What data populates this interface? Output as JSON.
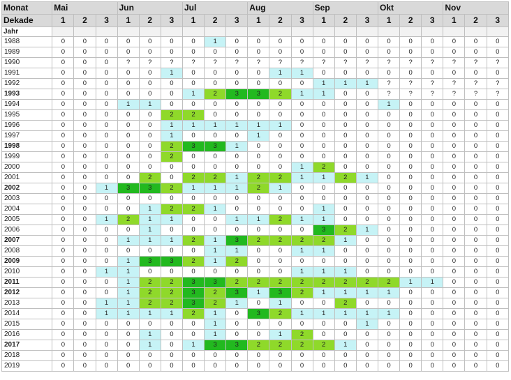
{
  "header": {
    "monat_label": "Monat",
    "dekade_label": "Dekade",
    "jahr_label": "Jahr",
    "months": [
      "Mai",
      "Jun",
      "Jul",
      "Aug",
      "Sep",
      "Okt",
      "Nov"
    ],
    "dekaden": [
      "1",
      "2",
      "3"
    ]
  },
  "colors": {
    "value_1": "#c6f3f6",
    "value_2": "#8fd92a",
    "value_3": "#22b91f",
    "header_bg": "#d9d9d9"
  },
  "rows": [
    {
      "year": "1988",
      "bold": false,
      "cells": [
        "0",
        "0",
        "0",
        "0",
        "0",
        "0",
        "0",
        "1",
        "0",
        "0",
        "0",
        "0",
        "0",
        "0",
        "0",
        "0",
        "0",
        "0",
        "0",
        "0",
        "0"
      ]
    },
    {
      "year": "1989",
      "bold": false,
      "cells": [
        "0",
        "0",
        "0",
        "0",
        "0",
        "0",
        "0",
        "0",
        "0",
        "0",
        "0",
        "0",
        "0",
        "0",
        "0",
        "0",
        "0",
        "0",
        "0",
        "0",
        "0"
      ]
    },
    {
      "year": "1990",
      "bold": false,
      "cells": [
        "0",
        "0",
        "0",
        "?",
        "?",
        "?",
        "?",
        "?",
        "?",
        "?",
        "?",
        "?",
        "?",
        "?",
        "?",
        "?",
        "?",
        "?",
        "?",
        "?",
        "?"
      ]
    },
    {
      "year": "1991",
      "bold": false,
      "cells": [
        "0",
        "0",
        "0",
        "0",
        "0",
        "1",
        "0",
        "0",
        "0",
        "0",
        "1",
        "1",
        "0",
        "0",
        "0",
        "0",
        "0",
        "0",
        "0",
        "0",
        "0"
      ]
    },
    {
      "year": "1992",
      "bold": false,
      "cells": [
        "0",
        "0",
        "0",
        "0",
        "0",
        "0",
        "0",
        "0",
        "0",
        "0",
        "0",
        "0",
        "1",
        "1",
        "1",
        "?",
        "?",
        "?",
        "?",
        "?",
        "?"
      ]
    },
    {
      "year": "1993",
      "bold": true,
      "cells": [
        "0",
        "0",
        "0",
        "0",
        "0",
        "0",
        "1",
        "2",
        "3",
        "3",
        "2",
        "1",
        "1",
        "0",
        "0",
        "?",
        "?",
        "?",
        "?",
        "?",
        "?"
      ]
    },
    {
      "year": "1994",
      "bold": false,
      "cells": [
        "0",
        "0",
        "0",
        "1",
        "1",
        "0",
        "0",
        "0",
        "0",
        "0",
        "0",
        "0",
        "0",
        "0",
        "0",
        "1",
        "0",
        "0",
        "0",
        "0",
        "0"
      ]
    },
    {
      "year": "1995",
      "bold": false,
      "cells": [
        "0",
        "0",
        "0",
        "0",
        "0",
        "2",
        "2",
        "0",
        "0",
        "0",
        "0",
        "0",
        "0",
        "0",
        "0",
        "0",
        "0",
        "0",
        "0",
        "0",
        "0"
      ]
    },
    {
      "year": "1996",
      "bold": false,
      "cells": [
        "0",
        "0",
        "0",
        "0",
        "0",
        "1",
        "1",
        "1",
        "1",
        "1",
        "1",
        "0",
        "0",
        "0",
        "0",
        "0",
        "0",
        "0",
        "0",
        "0",
        "0"
      ]
    },
    {
      "year": "1997",
      "bold": false,
      "cells": [
        "0",
        "0",
        "0",
        "0",
        "0",
        "1",
        "0",
        "0",
        "0",
        "1",
        "0",
        "0",
        "0",
        "0",
        "0",
        "0",
        "0",
        "0",
        "0",
        "0",
        "0"
      ]
    },
    {
      "year": "1998",
      "bold": true,
      "cells": [
        "0",
        "0",
        "0",
        "0",
        "0",
        "2",
        "3",
        "3",
        "1",
        "0",
        "0",
        "0",
        "0",
        "0",
        "0",
        "0",
        "0",
        "0",
        "0",
        "0",
        "0"
      ]
    },
    {
      "year": "1999",
      "bold": false,
      "cells": [
        "0",
        "0",
        "0",
        "0",
        "0",
        "2",
        "0",
        "0",
        "0",
        "0",
        "0",
        "0",
        "0",
        "0",
        "0",
        "0",
        "0",
        "0",
        "0",
        "0",
        "0"
      ]
    },
    {
      "year": "2000",
      "bold": false,
      "cells": [
        "0",
        "0",
        "0",
        "0",
        "0",
        "0",
        "0",
        "0",
        "0",
        "0",
        "0",
        "1",
        "2",
        "0",
        "0",
        "0",
        "0",
        "0",
        "0",
        "0",
        "0"
      ]
    },
    {
      "year": "2001",
      "bold": false,
      "cells": [
        "0",
        "0",
        "0",
        "0",
        "2",
        "0",
        "2",
        "2",
        "1",
        "2",
        "2",
        "1",
        "1",
        "2",
        "1",
        "0",
        "0",
        "0",
        "0",
        "0",
        "0"
      ]
    },
    {
      "year": "2002",
      "bold": true,
      "cells": [
        "0",
        "0",
        "1",
        "3",
        "3",
        "2",
        "1",
        "1",
        "1",
        "2",
        "1",
        "0",
        "0",
        "0",
        "0",
        "0",
        "0",
        "0",
        "0",
        "0",
        "0"
      ]
    },
    {
      "year": "2003",
      "bold": false,
      "cells": [
        "0",
        "0",
        "0",
        "0",
        "0",
        "0",
        "0",
        "0",
        "0",
        "0",
        "0",
        "0",
        "0",
        "0",
        "0",
        "0",
        "0",
        "0",
        "0",
        "0",
        "0"
      ]
    },
    {
      "year": "2004",
      "bold": false,
      "cells": [
        "0",
        "0",
        "0",
        "0",
        "1",
        "2",
        "2",
        "1",
        "0",
        "0",
        "0",
        "0",
        "1",
        "0",
        "0",
        "0",
        "0",
        "0",
        "0",
        "0",
        "0"
      ]
    },
    {
      "year": "2005",
      "bold": false,
      "cells": [
        "0",
        "0",
        "1",
        "2",
        "1",
        "1",
        "0",
        "0",
        "1",
        "1",
        "2",
        "1",
        "1",
        "0",
        "0",
        "0",
        "0",
        "0",
        "0",
        "0",
        "0"
      ]
    },
    {
      "year": "2006",
      "bold": false,
      "cells": [
        "0",
        "0",
        "0",
        "0",
        "1",
        "0",
        "0",
        "0",
        "0",
        "0",
        "0",
        "0",
        "3",
        "2",
        "1",
        "0",
        "0",
        "0",
        "0",
        "0",
        "0"
      ]
    },
    {
      "year": "2007",
      "bold": true,
      "cells": [
        "0",
        "0",
        "0",
        "1",
        "1",
        "1",
        "2",
        "1",
        "3",
        "2",
        "2",
        "2",
        "2",
        "1",
        "0",
        "0",
        "0",
        "0",
        "0",
        "0",
        "0"
      ]
    },
    {
      "year": "2008",
      "bold": false,
      "cells": [
        "0",
        "0",
        "0",
        "0",
        "0",
        "0",
        "0",
        "1",
        "1",
        "0",
        "0",
        "1",
        "1",
        "0",
        "0",
        "0",
        "0",
        "0",
        "0",
        "0",
        "0"
      ]
    },
    {
      "year": "2009",
      "bold": true,
      "cells": [
        "0",
        "0",
        "0",
        "1",
        "3",
        "3",
        "2",
        "1",
        "2",
        "0",
        "0",
        "0",
        "0",
        "0",
        "0",
        "0",
        "0",
        "0",
        "0",
        "0",
        "0"
      ]
    },
    {
      "year": "2010",
      "bold": false,
      "cells": [
        "0",
        "0",
        "1",
        "1",
        "0",
        "0",
        "0",
        "0",
        "0",
        "0",
        "0",
        "1",
        "1",
        "1",
        "0",
        "0",
        "0",
        "0",
        "0",
        "0",
        "0"
      ]
    },
    {
      "year": "2011",
      "bold": true,
      "cells": [
        "0",
        "0",
        "0",
        "1",
        "2",
        "2",
        "3",
        "3",
        "2",
        "2",
        "2",
        "2",
        "2",
        "2",
        "2",
        "2",
        "1",
        "1",
        "0",
        "0",
        "0"
      ]
    },
    {
      "year": "2012",
      "bold": true,
      "cells": [
        "0",
        "0",
        "0",
        "1",
        "2",
        "2",
        "3",
        "2",
        "3",
        "1",
        "3",
        "2",
        "1",
        "1",
        "1",
        "1",
        "0",
        "0",
        "0",
        "0",
        "0"
      ]
    },
    {
      "year": "2013",
      "bold": false,
      "cells": [
        "0",
        "0",
        "1",
        "1",
        "2",
        "2",
        "3",
        "2",
        "1",
        "0",
        "1",
        "0",
        "0",
        "2",
        "0",
        "0",
        "0",
        "0",
        "0",
        "0",
        "0"
      ]
    },
    {
      "year": "2014",
      "bold": false,
      "cells": [
        "0",
        "0",
        "1",
        "1",
        "1",
        "1",
        "2",
        "1",
        "0",
        "3",
        "2",
        "1",
        "1",
        "1",
        "1",
        "1",
        "0",
        "0",
        "0",
        "0",
        "0"
      ]
    },
    {
      "year": "2015",
      "bold": false,
      "cells": [
        "0",
        "0",
        "0",
        "0",
        "0",
        "0",
        "0",
        "1",
        "0",
        "0",
        "0",
        "0",
        "0",
        "0",
        "1",
        "0",
        "0",
        "0",
        "0",
        "0",
        "0"
      ]
    },
    {
      "year": "2016",
      "bold": false,
      "cells": [
        "0",
        "0",
        "0",
        "0",
        "1",
        "0",
        "0",
        "1",
        "0",
        "0",
        "1",
        "2",
        "0",
        "0",
        "0",
        "0",
        "0",
        "0",
        "0",
        "0",
        "0"
      ]
    },
    {
      "year": "2017",
      "bold": true,
      "cells": [
        "0",
        "0",
        "0",
        "0",
        "1",
        "0",
        "1",
        "3",
        "3",
        "2",
        "2",
        "2",
        "2",
        "1",
        "0",
        "0",
        "0",
        "0",
        "0",
        "0",
        "0"
      ]
    },
    {
      "year": "2018",
      "bold": false,
      "cells": [
        "0",
        "0",
        "0",
        "0",
        "0",
        "0",
        "0",
        "0",
        "0",
        "0",
        "0",
        "0",
        "0",
        "0",
        "0",
        "0",
        "0",
        "0",
        "0",
        "0",
        "0"
      ]
    },
    {
      "year": "2019",
      "bold": false,
      "cells": [
        "0",
        "0",
        "0",
        "0",
        "0",
        "0",
        "0",
        "0",
        "0",
        "0",
        "0",
        "0",
        "0",
        "0",
        "0",
        "0",
        "0",
        "0",
        "0",
        "0",
        "0"
      ]
    }
  ]
}
